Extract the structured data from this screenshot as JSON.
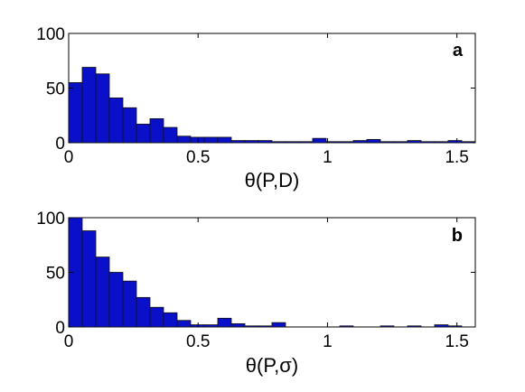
{
  "chart_data": [
    {
      "type": "bar",
      "panel_label": "a",
      "xlabel": "θ(P,D)",
      "ylabel": "",
      "xlim": [
        0,
        1.571
      ],
      "ylim": [
        0,
        100
      ],
      "xticks": [
        0,
        0.5,
        1,
        1.5
      ],
      "xtick_labels": [
        "0",
        "0.5",
        "1",
        "1.5"
      ],
      "yticks": [
        0,
        50,
        100
      ],
      "ytick_labels": [
        "0",
        "50",
        "100"
      ],
      "bin_width": 0.05236,
      "values": [
        55,
        69,
        63,
        41,
        32,
        17,
        22,
        14,
        6,
        5,
        5,
        5,
        2,
        2,
        2,
        1,
        1,
        1,
        4,
        1,
        1,
        2,
        3,
        1,
        1,
        2,
        1,
        1,
        2,
        1
      ],
      "color": "#0a10c8"
    },
    {
      "type": "bar",
      "panel_label": "b",
      "xlabel": "θ(P,σ)",
      "ylabel": "",
      "xlim": [
        0,
        1.571
      ],
      "ylim": [
        0,
        100
      ],
      "xticks": [
        0,
        0.5,
        1,
        1.5
      ],
      "xtick_labels": [
        "0",
        "0.5",
        "1",
        "1.5"
      ],
      "yticks": [
        0,
        50,
        100
      ],
      "ytick_labels": [
        "0",
        "50",
        "100"
      ],
      "bin_width": 0.05236,
      "values": [
        100,
        88,
        64,
        50,
        42,
        27,
        18,
        13,
        6,
        2,
        2,
        8,
        3,
        1,
        1,
        4,
        0,
        0,
        0,
        0,
        1,
        0,
        0,
        1,
        0,
        1,
        0,
        2,
        1,
        0
      ],
      "color": "#0a10c8"
    }
  ]
}
